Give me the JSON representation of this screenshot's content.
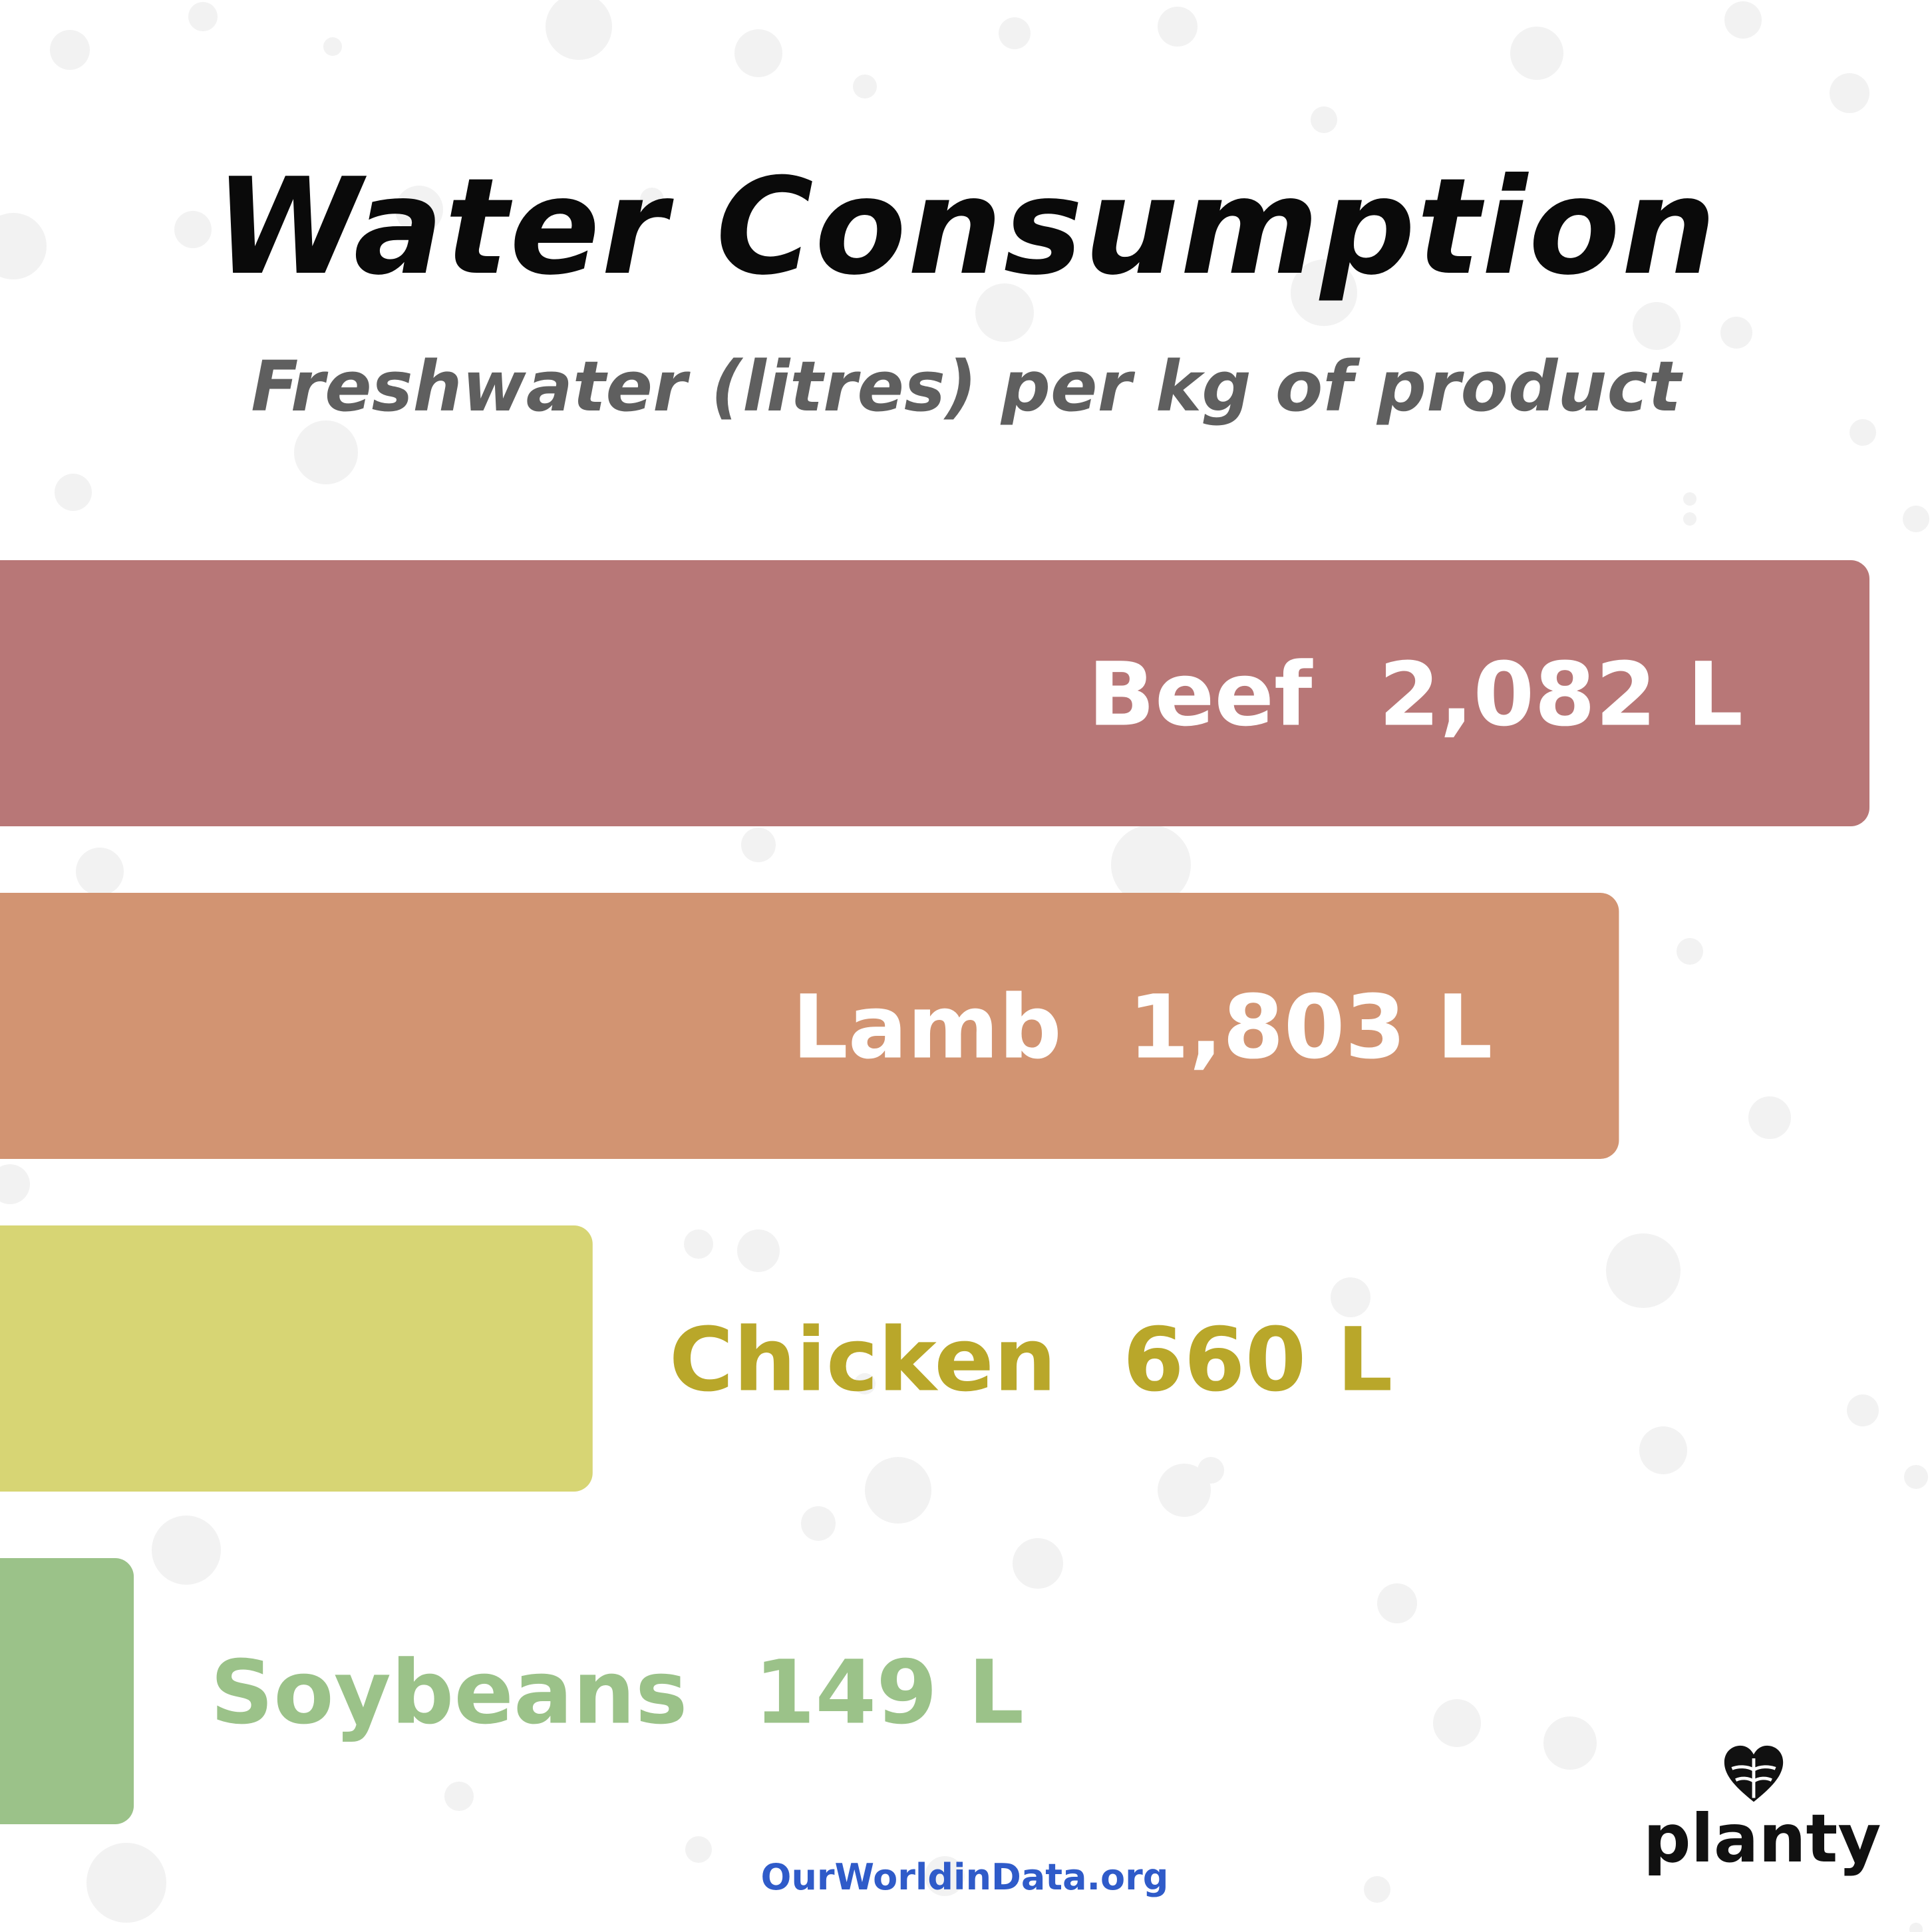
{
  "title": "Water Consumption",
  "subtitle": "Freshwater (litres) per kg of product",
  "source": "OurWorldinData.org",
  "logo": {
    "text": "planty",
    "icon": "leaf-heart-icon"
  },
  "chart_data": {
    "type": "bar",
    "orientation": "horizontal",
    "title": "Water Consumption",
    "subtitle": "Freshwater (litres) per kg of product",
    "unit": "L",
    "categories": [
      "Beef",
      "Lamb",
      "Chicken",
      "Soybeans"
    ],
    "values": [
      2082,
      1803,
      660,
      149
    ],
    "value_labels": [
      "2,082 L",
      "1,803 L",
      "660 L",
      "149 L"
    ],
    "colors": [
      "#b87777",
      "#d29472",
      "#d7d574",
      "#9bc289"
    ],
    "label_colors": [
      "#ffffff",
      "#ffffff",
      "#b9a72a",
      "#9bc289"
    ],
    "grid": false
  }
}
